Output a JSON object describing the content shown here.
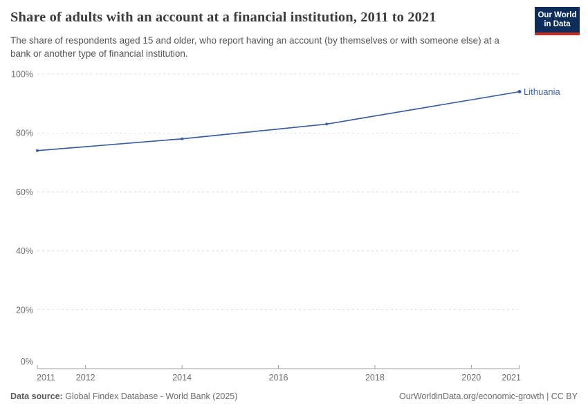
{
  "header": {
    "title": "Share of adults with an account at a financial institution, 2011 to 2021",
    "subtitle": "The share of respondents aged 15 and older, who report having an account (by themselves or with someone else) at a bank or another type of financial institution.",
    "logo": {
      "line1": "Our World",
      "line2": "in Data",
      "bg_color": "#0d2e5a",
      "stripe_color": "#cc2b24"
    }
  },
  "chart_data": {
    "type": "line",
    "title": "Share of adults with an account at a financial institution, 2011 to 2021",
    "x": [
      2011,
      2014,
      2017,
      2021
    ],
    "series": [
      {
        "name": "Lithuania",
        "values": [
          74,
          78,
          83,
          94
        ],
        "color": "#3d5f9e"
      }
    ],
    "x_ticks": [
      2011,
      2012,
      2014,
      2016,
      2018,
      2020,
      2021
    ],
    "y_ticks": [
      0,
      20,
      40,
      60,
      80,
      100
    ],
    "y_tick_suffix": "%",
    "xlim": [
      2011,
      2021
    ],
    "ylim": [
      0,
      100
    ],
    "grid": "horizontal-dashed",
    "legend_position": "end-of-line"
  },
  "footer": {
    "source_label": "Data source:",
    "source_text": " Global Findex Database - World Bank (2025)",
    "right_text": "OurWorldinData.org/economic-growth | CC BY"
  }
}
